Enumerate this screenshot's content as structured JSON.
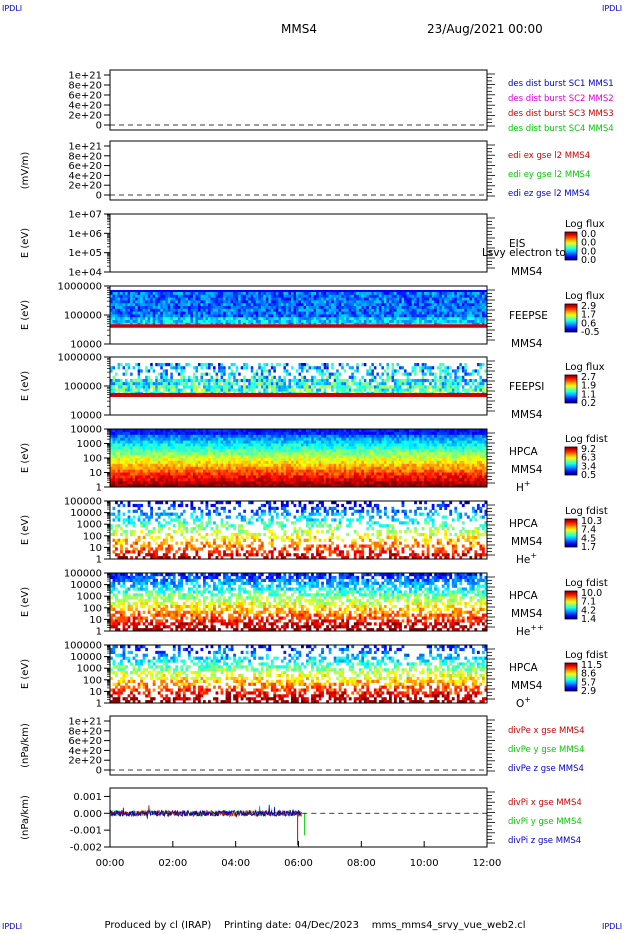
{
  "corners": {
    "tl": "IPDLI",
    "tr": "IPDLI",
    "bl": "IPDLI",
    "br": "IPDLI"
  },
  "header": {
    "title": "MMS4",
    "date": "23/Aug/2021 00:00"
  },
  "footer": {
    "produced": "Produced by cl (IRAP)",
    "printing": "Printing date: 04/Dec/2023",
    "file": "mms_mms4_srvy_vue_web2.cl"
  },
  "colors": {
    "red": "#cc0000",
    "magenta": "#e000e0",
    "green": "#00cc00",
    "blue": "#0000cc"
  },
  "chart_data": [
    {
      "type": "line",
      "ylabel": "",
      "yticks": [
        "1e+21",
        "8e+20",
        "6e+20",
        "4e+20",
        "2e+20",
        "0"
      ],
      "legend": [
        {
          "text": "des dist burst SC1 MMS1",
          "color": "blue"
        },
        {
          "text": "des dist burst SC2 MMS2",
          "color": "magenta"
        },
        {
          "text": "des dist burst SC3 MMS3",
          "color": "red"
        },
        {
          "text": "des dist burst SC4 MMS4",
          "color": "green"
        }
      ]
    },
    {
      "type": "line",
      "ylabel": "(mV/m)",
      "yticks": [
        "1e+21",
        "8e+20",
        "6e+20",
        "4e+20",
        "2e+20",
        "0"
      ],
      "legend": [
        {
          "text": "edi ex gse l2 MMS4",
          "color": "red"
        },
        {
          "text": "edi ey gse l2 MMS4",
          "color": "green"
        },
        {
          "text": "edi ez gse l2 MMS4",
          "color": "blue"
        }
      ]
    },
    {
      "type": "heatmap",
      "ylabel": "E (eV)",
      "yticks": [
        "1e+07",
        "1e+06",
        "1e+05",
        "1e+04"
      ],
      "instrument": [
        "EIS",
        "MMS4"
      ],
      "overlay": "Lsvy electron to",
      "cbar_title": "Log flux",
      "cbar_ticks": [
        "0.0",
        "0.0",
        "0.0",
        "0.0"
      ]
    },
    {
      "type": "heatmap",
      "ylabel": "E (eV)",
      "yticks": [
        "1000000",
        "100000",
        "10000"
      ],
      "instrument": [
        "FEEPSE",
        "MMS4"
      ],
      "cbar_title": "Log flux",
      "cbar_ticks": [
        "2.9",
        "1.7",
        "0.6",
        "-0.5"
      ]
    },
    {
      "type": "heatmap",
      "ylabel": "E (eV)",
      "yticks": [
        "1000000",
        "100000",
        "10000"
      ],
      "instrument": [
        "FEEPSI",
        "MMS4"
      ],
      "cbar_title": "Log flux",
      "cbar_ticks": [
        "2.7",
        "1.9",
        "1.1",
        "0.2"
      ]
    },
    {
      "type": "heatmap",
      "ylabel": "E (eV)",
      "yticks": [
        "10000",
        "1000",
        "100",
        "10",
        "1"
      ],
      "instrument": [
        "HPCA",
        "MMS4"
      ],
      "species": "H",
      "charge": "+",
      "cbar_title": "Log fdist",
      "cbar_ticks": [
        "9.2",
        "6.3",
        "3.4",
        "0.5"
      ]
    },
    {
      "type": "heatmap",
      "ylabel": "E (eV)",
      "yticks": [
        "100000",
        "10000",
        "1000",
        "100",
        "10",
        "1"
      ],
      "instrument": [
        "HPCA",
        "MMS4"
      ],
      "species": "He",
      "charge": "+",
      "cbar_title": "Log fdist",
      "cbar_ticks": [
        "10.3",
        "7.4",
        "4.5",
        "1.7"
      ]
    },
    {
      "type": "heatmap",
      "ylabel": "E (eV)",
      "yticks": [
        "100000",
        "10000",
        "1000",
        "100",
        "10",
        "1"
      ],
      "instrument": [
        "HPCA",
        "MMS4"
      ],
      "species": "He",
      "charge": "++",
      "cbar_title": "Log fdist",
      "cbar_ticks": [
        "10.0",
        "7.1",
        "4.2",
        "1.4"
      ]
    },
    {
      "type": "heatmap",
      "ylabel": "E (eV)",
      "yticks": [
        "100000",
        "10000",
        "1000",
        "100",
        "10",
        "1"
      ],
      "instrument": [
        "HPCA",
        "MMS4"
      ],
      "species": "O",
      "charge": "+",
      "cbar_title": "Log fdist",
      "cbar_ticks": [
        "11.5",
        "8.6",
        "5.7",
        "2.9"
      ]
    },
    {
      "type": "line",
      "ylabel": "(nPa/km)",
      "yticks": [
        "1e+21",
        "8e+20",
        "6e+20",
        "4e+20",
        "2e+20",
        "0"
      ],
      "legend": [
        {
          "text": "divPe x gse MMS4",
          "color": "red"
        },
        {
          "text": "divPe y gse MMS4",
          "color": "green"
        },
        {
          "text": "divPe z gse MMS4",
          "color": "blue"
        }
      ]
    },
    {
      "type": "line",
      "ylabel": "(nPa/km)",
      "yticks": [
        "0.001",
        "0.000",
        "-0.001",
        "-0.002"
      ],
      "ylim": [
        -0.002,
        0.0015
      ],
      "legend": [
        {
          "text": "divPi x gse MMS4",
          "color": "red"
        },
        {
          "text": "divPi y gse MMS4",
          "color": "green"
        },
        {
          "text": "divPi z gse MMS4",
          "color": "blue"
        }
      ]
    }
  ],
  "xaxis": {
    "ticks": [
      "00:00",
      "02:00",
      "04:00",
      "06:00",
      "08:00",
      "10:00",
      "12:00"
    ]
  }
}
